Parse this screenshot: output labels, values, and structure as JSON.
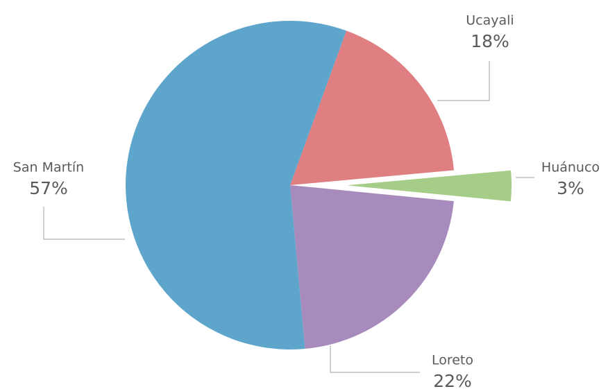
{
  "chart_data": {
    "type": "pie",
    "categories": [
      "Ucayali",
      "Huánuco",
      "Loreto",
      "San Martín"
    ],
    "values": [
      18,
      3,
      22,
      57
    ],
    "value_labels": [
      "18%",
      "3%",
      "22%",
      "57%"
    ],
    "colors": [
      "#e07f82",
      "#a5cd88",
      "#a88bbd",
      "#5ea5cc"
    ],
    "explode": [
      false,
      true,
      false,
      false
    ]
  }
}
